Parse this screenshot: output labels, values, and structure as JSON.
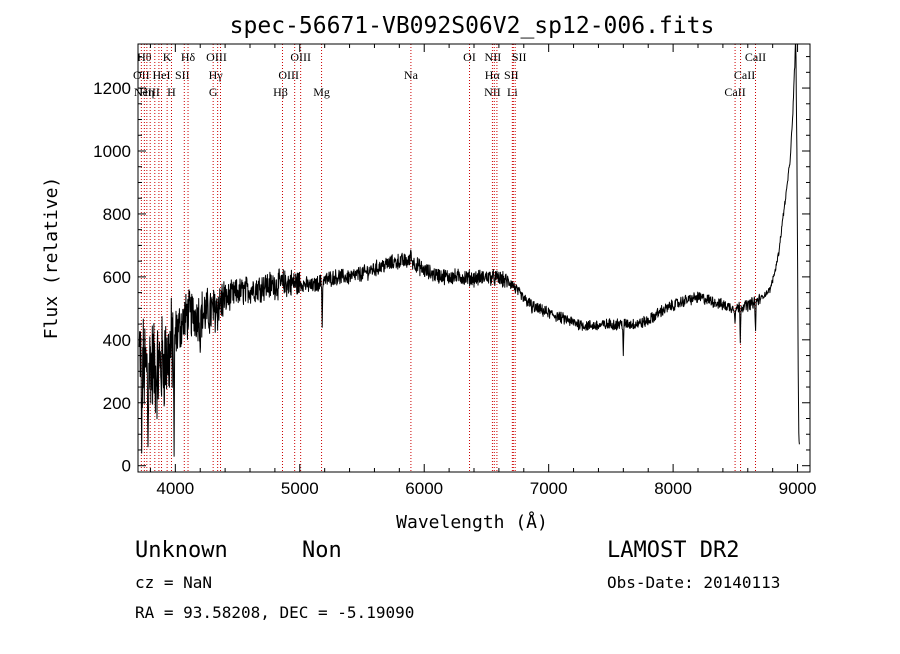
{
  "chart_data": {
    "type": "line",
    "title": "spec-56671-VB092S06V2_sp12-006.fits",
    "xlabel": "Wavelength (Å)",
    "ylabel": "Flux (relative)",
    "xlim": [
      3700,
      9100
    ],
    "ylim": [
      -20,
      1340
    ],
    "x_ticks": [
      4000,
      5000,
      6000,
      7000,
      8000,
      9000
    ],
    "x_tick_labels": [
      "4000",
      "5000",
      "6000",
      "7000",
      "8000",
      "9000"
    ],
    "y_ticks": [
      0,
      200,
      400,
      600,
      800,
      1000,
      1200
    ],
    "y_tick_labels": [
      "0",
      "200",
      "400",
      "600",
      "800",
      "1000",
      "1200"
    ],
    "line_color": "#000000",
    "marker_color": "#cc0000",
    "continuum_anchors": [
      [
        3710,
        350
      ],
      [
        3760,
        300
      ],
      [
        3800,
        330
      ],
      [
        3850,
        300
      ],
      [
        3900,
        330
      ],
      [
        3950,
        350
      ],
      [
        4000,
        420
      ],
      [
        4100,
        480
      ],
      [
        4200,
        480
      ],
      [
        4300,
        490
      ],
      [
        4400,
        530
      ],
      [
        4500,
        550
      ],
      [
        4600,
        560
      ],
      [
        4700,
        570
      ],
      [
        4800,
        575
      ],
      [
        4900,
        580
      ],
      [
        5000,
        580
      ],
      [
        5100,
        570
      ],
      [
        5200,
        590
      ],
      [
        5300,
        600
      ],
      [
        5400,
        600
      ],
      [
        5500,
        610
      ],
      [
        5600,
        625
      ],
      [
        5700,
        640
      ],
      [
        5800,
        650
      ],
      [
        5900,
        650
      ],
      [
        6000,
        620
      ],
      [
        6100,
        605
      ],
      [
        6200,
        600
      ],
      [
        6300,
        600
      ],
      [
        6400,
        595
      ],
      [
        6500,
        600
      ],
      [
        6600,
        595
      ],
      [
        6700,
        580
      ],
      [
        6800,
        530
      ],
      [
        6900,
        500
      ],
      [
        7000,
        485
      ],
      [
        7100,
        470
      ],
      [
        7200,
        455
      ],
      [
        7300,
        445
      ],
      [
        7400,
        445
      ],
      [
        7500,
        450
      ],
      [
        7600,
        450
      ],
      [
        7700,
        450
      ],
      [
        7800,
        460
      ],
      [
        7900,
        490
      ],
      [
        8000,
        510
      ],
      [
        8100,
        525
      ],
      [
        8200,
        535
      ],
      [
        8300,
        525
      ],
      [
        8400,
        510
      ],
      [
        8500,
        500
      ],
      [
        8600,
        510
      ],
      [
        8700,
        530
      ],
      [
        8780,
        560
      ],
      [
        8820,
        620
      ],
      [
        8850,
        680
      ],
      [
        8880,
        780
      ],
      [
        8910,
        870
      ],
      [
        8940,
        970
      ],
      [
        8960,
        1100
      ],
      [
        8975,
        1250
      ],
      [
        8985,
        1340
      ],
      [
        8995,
        1000
      ],
      [
        9005,
        300
      ],
      [
        9010,
        100
      ],
      [
        9015,
        70
      ]
    ],
    "features": [
      {
        "x": 8984,
        "y": 1350,
        "type": "spike"
      },
      {
        "x": 8540,
        "y": 390,
        "type": "dip"
      },
      {
        "x": 8662,
        "y": 420,
        "type": "dip"
      },
      {
        "x": 8498,
        "y": 450,
        "type": "dip"
      },
      {
        "x": 7600,
        "y": 350,
        "type": "dip"
      },
      {
        "x": 6866,
        "y": 480,
        "type": "dip"
      },
      {
        "x": 5893,
        "y": 690,
        "type": "peak"
      },
      {
        "x": 5180,
        "y": 440,
        "type": "dip"
      },
      {
        "x": 4200,
        "y": 360,
        "type": "dip"
      },
      {
        "x": 3990,
        "y": 30,
        "type": "dip"
      },
      {
        "x": 3730,
        "y": 40,
        "type": "dip"
      },
      {
        "x": 3780,
        "y": 60,
        "type": "dip"
      }
    ],
    "line_markers": [
      {
        "wave": 3727,
        "labels": [
          "OII"
        ],
        "rows": [
          1
        ],
        "dx": [
          0
        ]
      },
      {
        "wave": 3751,
        "labels": [
          "Hθ"
        ],
        "rows": [
          0
        ],
        "dx": [
          0
        ]
      },
      {
        "wave": 3771,
        "labels": [
          "Hη"
        ],
        "rows": [
          2
        ],
        "dx": [
          0
        ]
      },
      {
        "wave": 3798,
        "labels": [],
        "rows": [],
        "dx": []
      },
      {
        "wave": 3835,
        "labels": [],
        "rows": [],
        "dx": []
      },
      {
        "wave": 3868,
        "labels": [
          "NeIII"
        ],
        "rows": [
          2
        ],
        "dx": [
          -12
        ]
      },
      {
        "wave": 3889,
        "labels": [
          "HeI"
        ],
        "rows": [
          1
        ],
        "dx": [
          0
        ]
      },
      {
        "wave": 3934,
        "labels": [
          "K"
        ],
        "rows": [
          0
        ],
        "dx": [
          0
        ]
      },
      {
        "wave": 3969,
        "labels": [
          "H"
        ],
        "rows": [
          2
        ],
        "dx": [
          0
        ]
      },
      {
        "wave": 4072,
        "labels": [
          "SII"
        ],
        "rows": [
          1
        ],
        "dx": [
          -2
        ]
      },
      {
        "wave": 4102,
        "labels": [
          "Hδ"
        ],
        "rows": [
          0
        ],
        "dx": [
          0
        ]
      },
      {
        "wave": 4304,
        "labels": [
          "G"
        ],
        "rows": [
          2
        ],
        "dx": [
          0
        ]
      },
      {
        "wave": 4340,
        "labels": [
          "Hγ"
        ],
        "rows": [
          1
        ],
        "dx": [
          -2
        ]
      },
      {
        "wave": 4363,
        "labels": [
          "OIII"
        ],
        "rows": [
          0
        ],
        "dx": [
          -4
        ]
      },
      {
        "wave": 4861,
        "labels": [
          "Hβ"
        ],
        "rows": [
          2
        ],
        "dx": [
          -2
        ]
      },
      {
        "wave": 4959,
        "labels": [
          "OIII"
        ],
        "rows": [
          1
        ],
        "dx": [
          -6
        ]
      },
      {
        "wave": 5007,
        "labels": [
          "OIII"
        ],
        "rows": [
          0
        ],
        "dx": [
          0
        ]
      },
      {
        "wave": 5175,
        "labels": [
          "Mg"
        ],
        "rows": [
          2
        ],
        "dx": [
          0
        ]
      },
      {
        "wave": 5893,
        "labels": [
          "Na"
        ],
        "rows": [
          1
        ],
        "dx": [
          0
        ]
      },
      {
        "wave": 6364,
        "labels": [
          "OI"
        ],
        "rows": [
          0
        ],
        "dx": [
          0
        ]
      },
      {
        "wave": 6548,
        "labels": [
          "NII"
        ],
        "rows": [
          2
        ],
        "dx": [
          0
        ]
      },
      {
        "wave": 6563,
        "labels": [
          "Hα"
        ],
        "rows": [
          1
        ],
        "dx": [
          -2
        ]
      },
      {
        "wave": 6584,
        "labels": [
          "NII"
        ],
        "rows": [
          0
        ],
        "dx": [
          -4
        ]
      },
      {
        "wave": 6708,
        "labels": [
          "Li"
        ],
        "rows": [
          2
        ],
        "dx": [
          0
        ]
      },
      {
        "wave": 6716,
        "labels": [
          "SII"
        ],
        "rows": [
          1
        ],
        "dx": [
          -2
        ]
      },
      {
        "wave": 6731,
        "labels": [
          "SII"
        ],
        "rows": [
          0
        ],
        "dx": [
          4
        ]
      },
      {
        "wave": 8498,
        "labels": [
          "CaII"
        ],
        "rows": [
          2
        ],
        "dx": [
          0
        ]
      },
      {
        "wave": 8542,
        "labels": [
          "CaII"
        ],
        "rows": [
          1
        ],
        "dx": [
          4
        ]
      },
      {
        "wave": 8662,
        "labels": [
          "CaII"
        ],
        "rows": [
          0
        ],
        "dx": [
          0
        ]
      }
    ]
  },
  "info": {
    "object_class": "Unknown",
    "subclass": "Non",
    "survey": "LAMOST DR2",
    "redshift": "cz = NaN",
    "obs_date": "Obs-Date: 20140113",
    "coordinates": "RA =  93.58208, DEC =  -5.19090"
  }
}
